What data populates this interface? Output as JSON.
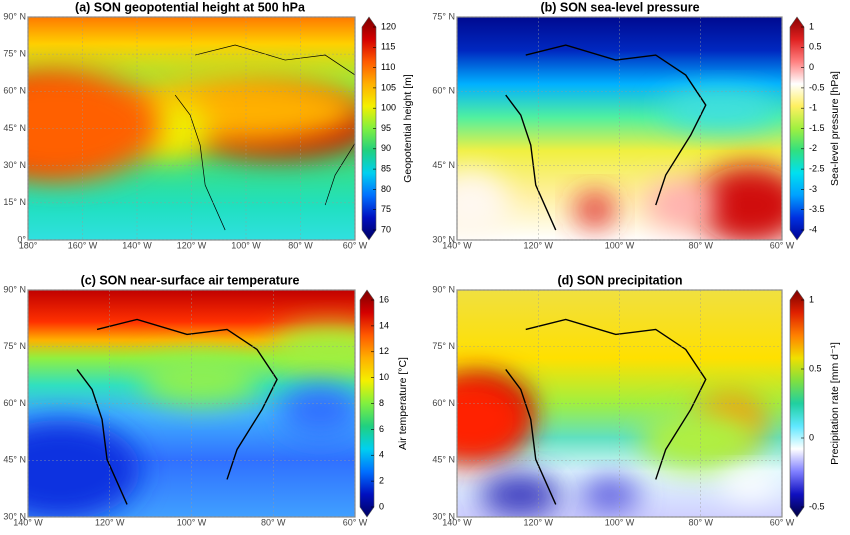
{
  "panels": [
    {
      "title": "(a) SON geopotential height at 500 hPa",
      "colorbar_label": "Geopotential height [m]",
      "colorbar_ticks": [
        "120",
        "115",
        "110",
        "105",
        "100",
        "95",
        "90",
        "85",
        "80",
        "75",
        "70"
      ],
      "lat_ticks": [
        "90° N",
        "75° N",
        "60° N",
        "45° N",
        "30° N",
        "15° N",
        "0°"
      ],
      "lon_ticks": [
        "180°",
        "160° W",
        "140° W",
        "120° W",
        "100° W",
        "80° W",
        "60° W"
      ]
    },
    {
      "title": "(b) SON sea-level pressure",
      "colorbar_label": "Sea-level pressure [hPa]",
      "colorbar_ticks": [
        "1",
        "0.5",
        "0",
        "-0.5",
        "-1",
        "-1.5",
        "-2",
        "-2.5",
        "-3",
        "-3.5",
        "-4"
      ],
      "lat_ticks": [
        "75° N",
        "60° N",
        "45° N",
        "30° N"
      ],
      "lon_ticks": [
        "140° W",
        "120° W",
        "100° W",
        "80° W",
        "60° W"
      ]
    },
    {
      "title": "(c) SON near-surface air temperature",
      "colorbar_label": "Air temperature [°C]",
      "colorbar_ticks": [
        "16",
        "14",
        "12",
        "10",
        "8",
        "6",
        "4",
        "2",
        "0"
      ],
      "lat_ticks": [
        "90° N",
        "75° N",
        "60° N",
        "45° N",
        "30° N"
      ],
      "lon_ticks": [
        "140° W",
        "120° W",
        "100° W",
        "80° W",
        "60° W"
      ]
    },
    {
      "title": "(d) SON precipitation",
      "colorbar_label": "Precipitation rate [mm d⁻¹]",
      "colorbar_ticks": [
        "1",
        "0.5",
        "0",
        "-0.5"
      ],
      "lat_ticks": [
        "90° N",
        "75° N",
        "60° N",
        "45° N",
        "30° N"
      ],
      "lon_ticks": [
        "140° W",
        "120° W",
        "100° W",
        "80° W",
        "60° W"
      ]
    }
  ]
}
